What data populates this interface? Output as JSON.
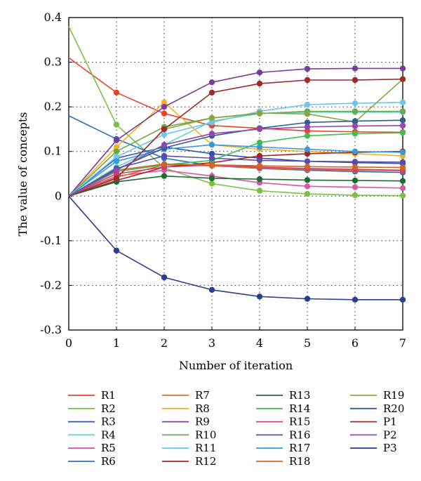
{
  "chart_data": {
    "type": "line",
    "title": "",
    "xlabel": "Number of iteration",
    "ylabel": "The value of concepts",
    "xlim": [
      0,
      7
    ],
    "ylim": [
      -0.3,
      0.4
    ],
    "x": [
      0,
      1,
      2,
      3,
      4,
      5,
      6,
      7
    ],
    "x_ticks": [
      "0",
      "1",
      "2",
      "3",
      "4",
      "5",
      "6",
      "7"
    ],
    "y_ticks": [
      "0.4",
      "0.3",
      "0.2",
      "0.1",
      "0",
      "-0.1",
      "-0.2",
      "-0.3"
    ],
    "grid": true,
    "legend_position": "bottom",
    "series": [
      {
        "name": "R1",
        "color": "#e8432a",
        "values": [
          0.31,
          0.232,
          0.185,
          0.158,
          0.152,
          0.146,
          0.144,
          0.143
        ]
      },
      {
        "name": "R2",
        "color": "#7ac143",
        "values": [
          0.38,
          0.16,
          0.063,
          0.028,
          0.012,
          0.005,
          0.002,
          0.001
        ]
      },
      {
        "name": "R3",
        "color": "#2e4fb8",
        "values": [
          0,
          0.085,
          0.11,
          0.095,
          0.085,
          0.078,
          0.075,
          0.073
        ]
      },
      {
        "name": "R4",
        "color": "#5ad2d2",
        "values": [
          0,
          0.065,
          0.115,
          0.168,
          0.185,
          0.188,
          0.188,
          0.188
        ]
      },
      {
        "name": "R5",
        "color": "#d957a8",
        "values": [
          0,
          0.045,
          0.058,
          0.045,
          0.03,
          0.022,
          0.02,
          0.018
        ]
      },
      {
        "name": "R6",
        "color": "#2d6fb5",
        "values": [
          0.18,
          0.128,
          0.085,
          0.068,
          0.062,
          0.058,
          0.055,
          0.053
        ]
      },
      {
        "name": "R7",
        "color": "#e56b2c",
        "values": [
          0,
          0.042,
          0.07,
          0.068,
          0.063,
          0.06,
          0.058,
          0.057
        ]
      },
      {
        "name": "R8",
        "color": "#f2b124",
        "values": [
          0,
          0.11,
          0.21,
          0.115,
          0.105,
          0.1,
          0.095,
          0.09
        ]
      },
      {
        "name": "R9",
        "color": "#7a3c9a",
        "values": [
          0,
          0.125,
          0.2,
          0.255,
          0.277,
          0.285,
          0.286,
          0.286
        ]
      },
      {
        "name": "R10",
        "color": "#6aa84f",
        "values": [
          0,
          0.1,
          0.155,
          0.175,
          0.185,
          0.19,
          0.19,
          0.19
        ]
      },
      {
        "name": "R11",
        "color": "#6ec6ea",
        "values": [
          0,
          0.088,
          0.138,
          0.165,
          0.19,
          0.205,
          0.208,
          0.21
        ]
      },
      {
        "name": "R12",
        "color": "#a42326",
        "values": [
          0,
          0.035,
          0.065,
          0.075,
          0.09,
          0.095,
          0.098,
          0.1
        ]
      },
      {
        "name": "R13",
        "color": "#1d6b33",
        "values": [
          0,
          0.032,
          0.045,
          0.04,
          0.038,
          0.036,
          0.035,
          0.034
        ]
      },
      {
        "name": "R14",
        "color": "#3fbf4a",
        "values": [
          0,
          0.055,
          0.07,
          0.08,
          0.12,
          0.135,
          0.14,
          0.142
        ]
      },
      {
        "name": "R15",
        "color": "#d33c6c",
        "values": [
          0,
          0.05,
          0.065,
          0.07,
          0.065,
          0.062,
          0.06,
          0.058
        ]
      },
      {
        "name": "R16",
        "color": "#5a4ca8",
        "values": [
          0,
          0.062,
          0.09,
          0.085,
          0.08,
          0.078,
          0.077,
          0.076
        ]
      },
      {
        "name": "R17",
        "color": "#3b9ad6",
        "values": [
          0,
          0.078,
          0.105,
          0.115,
          0.11,
          0.105,
          0.1,
          0.098
        ]
      },
      {
        "name": "R18",
        "color": "#d0642a",
        "values": [
          0,
          0.058,
          0.072,
          0.07,
          0.068,
          0.066,
          0.065,
          0.064
        ]
      },
      {
        "name": "R19",
        "color": "#8aa63a",
        "values": [
          0,
          0.04,
          0.15,
          0.175,
          0.186,
          0.184,
          0.166,
          0.262
        ]
      },
      {
        "name": "R20",
        "color": "#2f5e8e",
        "values": [
          0,
          0.06,
          0.108,
          0.135,
          0.152,
          0.165,
          0.168,
          0.17
        ]
      },
      {
        "name": "P1",
        "color": "#9e2a2a",
        "values": [
          0,
          0.04,
          0.15,
          0.232,
          0.252,
          0.26,
          0.26,
          0.262
        ]
      },
      {
        "name": "P2",
        "color": "#9248b0",
        "values": [
          0,
          0.058,
          0.115,
          0.14,
          0.15,
          0.155,
          0.157,
          0.158
        ]
      },
      {
        "name": "P3",
        "color": "#2b3f8f",
        "values": [
          0,
          -0.122,
          -0.182,
          -0.21,
          -0.225,
          -0.23,
          -0.232,
          -0.232
        ]
      }
    ]
  }
}
